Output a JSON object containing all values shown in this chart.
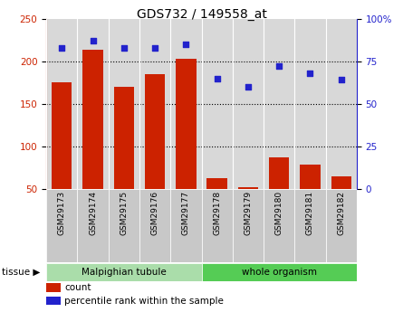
{
  "title": "GDS732 / 149558_at",
  "categories": [
    "GSM29173",
    "GSM29174",
    "GSM29175",
    "GSM29176",
    "GSM29177",
    "GSM29178",
    "GSM29179",
    "GSM29180",
    "GSM29181",
    "GSM29182"
  ],
  "bar_values": [
    175,
    213,
    170,
    185,
    203,
    63,
    52,
    87,
    78,
    65
  ],
  "percentile_values": [
    83,
    87,
    83,
    83,
    85,
    65,
    60,
    72,
    68,
    64
  ],
  "bar_color": "#cc2200",
  "dot_color": "#2222cc",
  "ylim_left": [
    50,
    250
  ],
  "ylim_right": [
    0,
    100
  ],
  "yticks_left": [
    50,
    100,
    150,
    200,
    250
  ],
  "yticks_right": [
    0,
    25,
    50,
    75,
    100
  ],
  "yticklabels_right": [
    "0",
    "25",
    "50",
    "75",
    "100%"
  ],
  "grid_values": [
    100,
    150,
    200
  ],
  "tissue_groups": [
    {
      "label": "Malpighian tubule",
      "start": 0,
      "end": 5,
      "color": "#aaddaa"
    },
    {
      "label": "whole organism",
      "start": 5,
      "end": 10,
      "color": "#55cc55"
    }
  ],
  "legend_count_label": "count",
  "legend_pct_label": "percentile rank within the sample",
  "tissue_label": "tissue",
  "background_color": "#ffffff",
  "plot_bg_color": "#d8d8d8",
  "xticklabel_bg": "#c8c8c8"
}
